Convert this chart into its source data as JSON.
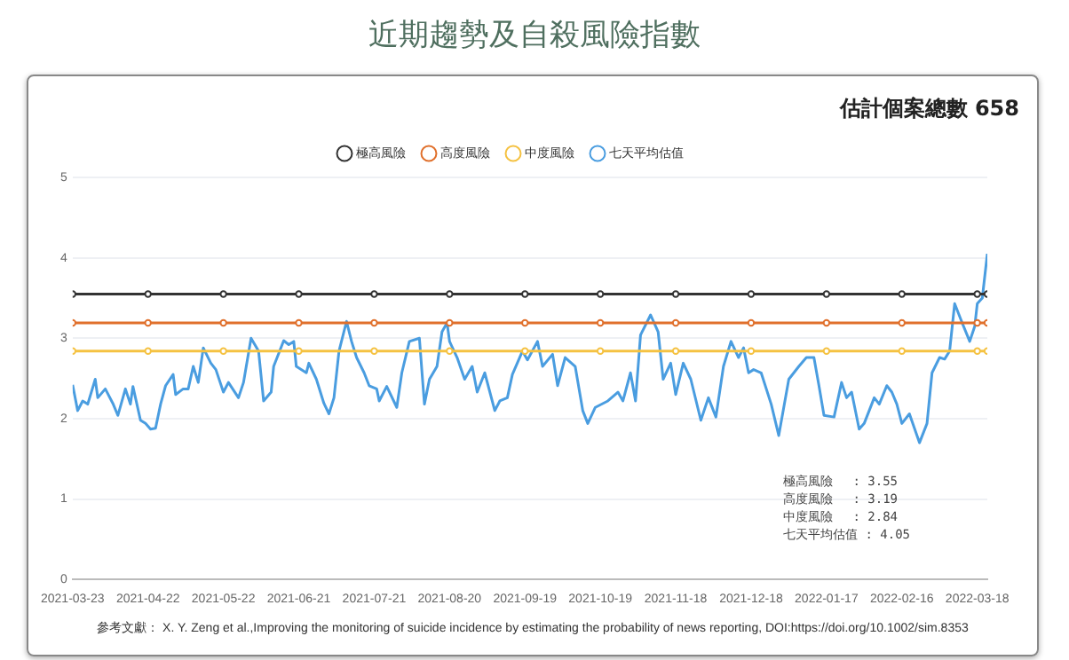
{
  "chart_data": {
    "type": "line",
    "title": "近期趨勢及自殺風險指數",
    "subtitle": "估計個案總數 658",
    "ylim": [
      0,
      5
    ],
    "yticks": [
      0,
      1,
      2,
      3,
      4,
      5
    ],
    "xlim": [
      "2021-03-23",
      "2022-03-22"
    ],
    "xticks": [
      "2021-03-23",
      "2021-04-22",
      "2021-05-22",
      "2021-06-21",
      "2021-07-21",
      "2021-08-20",
      "2021-09-19",
      "2021-10-19",
      "2021-11-18",
      "2021-12-18",
      "2022-01-17",
      "2022-02-16",
      "2022-03-18"
    ],
    "grid": "y",
    "legend": "top",
    "line_style": "solid",
    "annotations": [
      "極高風險　 : 3.55",
      "高度風險　 : 3.19",
      "中度風險　 : 2.84",
      "七天平均估值 : 4.05",
      "參考文獻： X. Y. Zeng et al.,Improving the monitoring of suicide incidence by estimating the probability of news reporting, DOI:https://doi.org/10.1002/sim.8353"
    ],
    "series": [
      {
        "name": "極高風險",
        "color": "#333333",
        "marker": "circle",
        "x": [
          "2021-03-23",
          "2021-04-22",
          "2021-05-22",
          "2021-06-21",
          "2021-07-21",
          "2021-08-20",
          "2021-09-19",
          "2021-10-19",
          "2021-11-18",
          "2021-12-18",
          "2022-01-17",
          "2022-02-16",
          "2022-03-18",
          "2022-03-22"
        ],
        "values": [
          3.55,
          3.55,
          3.55,
          3.55,
          3.55,
          3.55,
          3.55,
          3.55,
          3.55,
          3.55,
          3.55,
          3.55,
          3.55,
          3.55
        ]
      },
      {
        "name": "高度風險",
        "color": "#e0702c",
        "marker": "circle",
        "x": [
          "2021-03-23",
          "2021-04-22",
          "2021-05-22",
          "2021-06-21",
          "2021-07-21",
          "2021-08-20",
          "2021-09-19",
          "2021-10-19",
          "2021-11-18",
          "2021-12-18",
          "2022-01-17",
          "2022-02-16",
          "2022-03-18",
          "2022-03-22"
        ],
        "values": [
          3.19,
          3.19,
          3.19,
          3.19,
          3.19,
          3.19,
          3.19,
          3.19,
          3.19,
          3.19,
          3.19,
          3.19,
          3.19,
          3.19
        ]
      },
      {
        "name": "中度風險",
        "color": "#f5c242",
        "marker": "circle",
        "x": [
          "2021-03-23",
          "2021-04-22",
          "2021-05-22",
          "2021-06-21",
          "2021-07-21",
          "2021-08-20",
          "2021-09-19",
          "2021-10-19",
          "2021-11-18",
          "2021-12-18",
          "2022-01-17",
          "2022-02-16",
          "2022-03-18",
          "2022-03-22"
        ],
        "values": [
          2.84,
          2.84,
          2.84,
          2.84,
          2.84,
          2.84,
          2.84,
          2.84,
          2.84,
          2.84,
          2.84,
          2.84,
          2.84,
          2.84
        ]
      },
      {
        "name": "七天平均估值",
        "color": "#4a9de0",
        "marker": "none",
        "x": [
          "2021-03-23",
          "2021-03-25",
          "2021-03-27",
          "2021-03-29",
          "2021-04-01",
          "2021-04-02",
          "2021-04-05",
          "2021-04-08",
          "2021-04-10",
          "2021-04-13",
          "2021-04-15",
          "2021-04-16",
          "2021-04-19",
          "2021-04-21",
          "2021-04-23",
          "2021-04-25",
          "2021-04-27",
          "2021-04-29",
          "2021-05-02",
          "2021-05-03",
          "2021-05-06",
          "2021-05-08",
          "2021-05-10",
          "2021-05-12",
          "2021-05-14",
          "2021-05-17",
          "2021-05-19",
          "2021-05-22",
          "2021-05-24",
          "2021-05-28",
          "2021-05-30",
          "2021-06-02",
          "2021-06-05",
          "2021-06-07",
          "2021-06-10",
          "2021-06-11",
          "2021-06-15",
          "2021-06-17",
          "2021-06-19",
          "2021-06-20",
          "2021-06-24",
          "2021-06-25",
          "2021-06-28",
          "2021-07-01",
          "2021-07-03",
          "2021-07-05",
          "2021-07-07",
          "2021-07-10",
          "2021-07-12",
          "2021-07-14",
          "2021-07-17",
          "2021-07-19",
          "2021-07-22",
          "2021-07-23",
          "2021-07-26",
          "2021-07-30",
          "2021-08-01",
          "2021-08-04",
          "2021-08-08",
          "2021-08-10",
          "2021-08-12",
          "2021-08-15",
          "2021-08-17",
          "2021-08-19",
          "2021-08-20",
          "2021-08-23",
          "2021-08-26",
          "2021-08-29",
          "2021-08-31",
          "2021-09-03",
          "2021-09-07",
          "2021-09-09",
          "2021-09-12",
          "2021-09-14",
          "2021-09-18",
          "2021-09-20",
          "2021-09-24",
          "2021-09-26",
          "2021-09-30",
          "2021-10-02",
          "2021-10-05",
          "2021-10-09",
          "2021-10-12",
          "2021-10-14",
          "2021-10-17",
          "2021-10-22",
          "2021-10-26",
          "2021-10-28",
          "2021-10-31",
          "2021-11-02",
          "2021-11-04",
          "2021-11-08",
          "2021-11-11",
          "2021-11-13",
          "2021-11-16",
          "2021-11-18",
          "2021-11-21",
          "2021-11-24",
          "2021-11-28",
          "2021-12-01",
          "2021-12-04",
          "2021-12-07",
          "2021-12-10",
          "2021-12-13",
          "2021-12-15",
          "2021-12-17",
          "2021-12-19",
          "2021-12-22",
          "2021-12-26",
          "2021-12-29",
          "2022-01-02",
          "2022-01-06",
          "2022-01-09",
          "2022-01-12",
          "2022-01-14",
          "2022-01-16",
          "2022-01-20",
          "2022-01-23",
          "2022-01-25",
          "2022-01-27",
          "2022-01-30",
          "2022-02-01",
          "2022-02-05",
          "2022-02-07",
          "2022-02-10",
          "2022-02-12",
          "2022-02-14",
          "2022-02-16",
          "2022-02-19",
          "2022-02-23",
          "2022-02-26",
          "2022-02-28",
          "2022-03-03",
          "2022-03-05",
          "2022-03-07",
          "2022-03-09",
          "2022-03-12",
          "2022-03-15",
          "2022-03-17",
          "2022-03-18",
          "2022-03-20",
          "2022-03-22"
        ],
        "values": [
          2.42,
          2.1,
          2.22,
          2.18,
          2.49,
          2.26,
          2.37,
          2.19,
          2.04,
          2.37,
          2.18,
          2.4,
          1.98,
          1.94,
          1.87,
          1.88,
          2.18,
          2.41,
          2.55,
          2.3,
          2.37,
          2.37,
          2.65,
          2.45,
          2.88,
          2.69,
          2.61,
          2.33,
          2.45,
          2.26,
          2.45,
          3.0,
          2.84,
          2.22,
          2.33,
          2.65,
          2.97,
          2.92,
          2.96,
          2.65,
          2.57,
          2.69,
          2.49,
          2.19,
          2.06,
          2.26,
          2.84,
          3.21,
          2.96,
          2.76,
          2.57,
          2.41,
          2.37,
          2.22,
          2.4,
          2.14,
          2.57,
          2.96,
          3.0,
          2.18,
          2.49,
          2.65,
          3.08,
          3.19,
          2.96,
          2.76,
          2.49,
          2.65,
          2.33,
          2.57,
          2.1,
          2.22,
          2.26,
          2.55,
          2.84,
          2.73,
          2.96,
          2.65,
          2.8,
          2.41,
          2.76,
          2.65,
          2.1,
          1.94,
          2.14,
          2.22,
          2.33,
          2.22,
          2.57,
          2.22,
          3.04,
          3.29,
          3.08,
          2.49,
          2.69,
          2.3,
          2.69,
          2.49,
          1.98,
          2.26,
          2.02,
          2.65,
          2.96,
          2.76,
          2.88,
          2.57,
          2.61,
          2.57,
          2.18,
          1.79,
          2.49,
          2.65,
          2.76,
          2.76,
          2.41,
          2.04,
          2.02,
          2.45,
          2.26,
          2.33,
          1.87,
          1.94,
          2.26,
          2.18,
          2.41,
          2.33,
          2.18,
          1.94,
          2.06,
          1.7,
          1.94,
          2.57,
          2.76,
          2.74,
          2.84,
          3.43,
          3.19,
          2.96,
          3.15,
          3.43,
          3.5,
          4.05
        ]
      }
    ]
  }
}
